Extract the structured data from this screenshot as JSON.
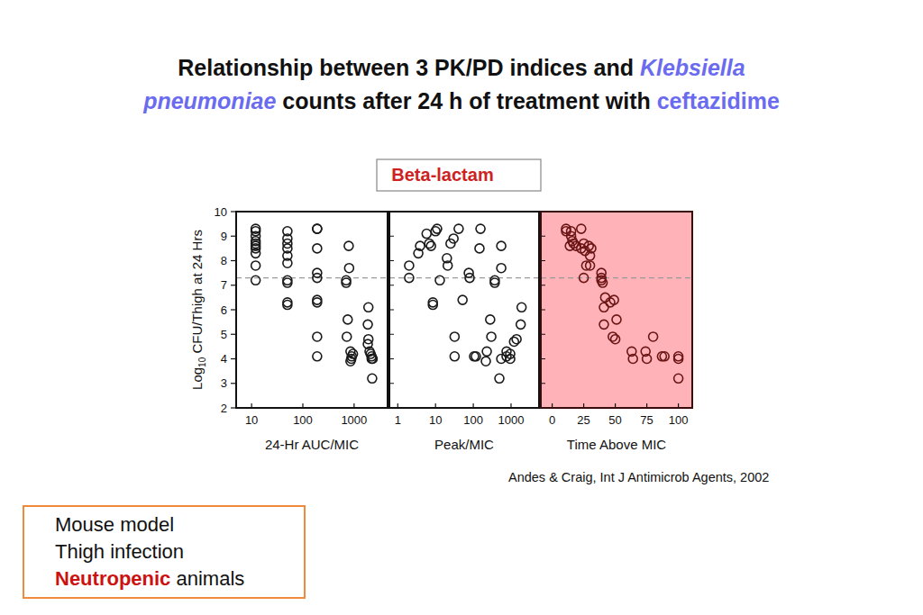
{
  "slide": {
    "title_lines": [
      [
        {
          "text": "Relationship between 3 PK/PD indices and "
        },
        {
          "text": "Klebsiella",
          "highlight": true,
          "italic": true
        }
      ],
      [
        {
          "text": "pneumoniae",
          "highlight": true,
          "italic": true
        },
        {
          "text": " counts after 24 h of treatment with "
        },
        {
          "text": "ceftazidime",
          "highlight": true
        }
      ]
    ],
    "class_label": "Beta-lactam",
    "citation": "Andes & Craig, Int J Antimicrob Agents, 2002",
    "box_lines": [
      [
        {
          "text": "Mouse model"
        }
      ],
      [
        {
          "text": "Thigh infection"
        }
      ],
      [
        {
          "text": "Neutropenic",
          "emphasis": true
        },
        {
          "text": " animals"
        }
      ]
    ]
  },
  "chart_data": [
    {
      "type": "scatter",
      "xlabel": "24-Hr AUC/MIC",
      "ylabel": "Log10 CFU/Thigh at 24 Hrs",
      "log": "x",
      "xlim": [
        5,
        4500
      ],
      "xticks": [
        10,
        100,
        1000
      ],
      "ylim": [
        2,
        10
      ],
      "yticks": [
        2,
        3,
        4,
        5,
        6,
        7,
        8,
        9,
        10
      ],
      "threshold": 7.3,
      "color": "#1a1a1a",
      "marker": "circle",
      "x": [
        12,
        12,
        12,
        12,
        12,
        12,
        12,
        12,
        12,
        12,
        50,
        50,
        50,
        50,
        50,
        50,
        50,
        50,
        50,
        50,
        190,
        190,
        190,
        190,
        190,
        190,
        190,
        190,
        190,
        785,
        800,
        700,
        700,
        750,
        720,
        850,
        950,
        900,
        880,
        850,
        1900,
        1850,
        1900,
        1850,
        2000,
        2100,
        2200,
        2300,
        2200,
        2250
      ],
      "values": [
        9.3,
        9.2,
        9.0,
        8.8,
        8.7,
        8.6,
        8.5,
        8.3,
        7.8,
        7.2,
        9.2,
        8.9,
        8.7,
        8.5,
        8.2,
        7.9,
        7.2,
        7.1,
        6.3,
        6.2,
        9.3,
        9.3,
        8.5,
        7.5,
        7.3,
        6.4,
        6.3,
        4.9,
        4.1,
        8.6,
        7.7,
        7.2,
        7.1,
        5.6,
        4.9,
        4.3,
        4.2,
        4.1,
        4.0,
        3.9,
        6.1,
        5.4,
        4.8,
        4.6,
        4.3,
        4.2,
        4.1,
        4.0,
        4.0,
        3.2
      ]
    },
    {
      "type": "scatter",
      "xlabel": "Peak/MIC",
      "log": "x",
      "xlim": [
        0.6,
        5500
      ],
      "xticks": [
        1,
        10,
        100,
        1000
      ],
      "ylim": [
        2,
        10
      ],
      "yticks": [
        2,
        3,
        4,
        5,
        6,
        7,
        8,
        9,
        10
      ],
      "tick_labels": "x",
      "threshold": 7.3,
      "color": "#1a1a1a",
      "marker": "circle",
      "x": [
        2.0,
        2.0,
        3.5,
        3.9,
        5.8,
        6.8,
        7.6,
        8.5,
        8.5,
        10,
        11,
        13,
        20,
        21,
        25,
        30,
        32,
        32,
        41,
        52,
        76,
        80,
        105,
        117,
        155,
        146,
        215,
        228,
        280,
        300,
        370,
        370,
        490,
        550,
        550,
        550,
        760,
        760,
        950,
        1200,
        1400,
        1800,
        1900,
        950
      ],
      "values": [
        7.8,
        7.3,
        8.3,
        8.6,
        9.1,
        8.7,
        8.6,
        6.2,
        6.3,
        9.2,
        9.3,
        7.2,
        8.1,
        7.8,
        8.7,
        8.9,
        4.9,
        4.1,
        9.3,
        6.4,
        7.5,
        7.3,
        4.1,
        4.1,
        9.3,
        8.5,
        3.9,
        4.3,
        5.6,
        4.9,
        7.2,
        7.1,
        3.2,
        7.7,
        8.6,
        4.0,
        4.1,
        4.3,
        4.2,
        4.7,
        4.8,
        5.4,
        6.1,
        4.0
      ]
    },
    {
      "type": "scatter",
      "xlabel": "Time Above MIC",
      "xlim": [
        -9,
        111
      ],
      "xticks": [
        0,
        25,
        50,
        75,
        100
      ],
      "ylim": [
        2,
        10
      ],
      "yticks": [
        2,
        3,
        4,
        5,
        6,
        7,
        8,
        9,
        10
      ],
      "tick_labels": "x",
      "threshold": 7.3,
      "color": "#6b1515",
      "marker": "circle",
      "x": [
        11,
        11,
        15,
        15,
        16,
        14,
        17,
        19,
        23,
        23,
        25,
        26,
        27,
        30,
        29,
        30,
        31,
        25,
        39,
        39,
        39,
        40,
        41,
        42,
        41,
        46,
        49,
        51,
        48,
        50,
        63,
        64,
        74,
        75,
        80,
        87,
        89,
        100,
        100,
        100
      ],
      "values": [
        9.2,
        9.3,
        9.2,
        9.0,
        8.8,
        8.6,
        8.7,
        8.6,
        9.3,
        8.5,
        8.7,
        8.4,
        7.8,
        7.8,
        8.6,
        8.2,
        8.5,
        7.3,
        7.5,
        7.3,
        7.2,
        7.1,
        6.1,
        6.5,
        5.4,
        6.3,
        6.4,
        5.6,
        4.9,
        4.8,
        4.3,
        4.0,
        4.3,
        4.0,
        4.9,
        4.1,
        4.1,
        4.1,
        4.0,
        3.2
      ]
    }
  ]
}
